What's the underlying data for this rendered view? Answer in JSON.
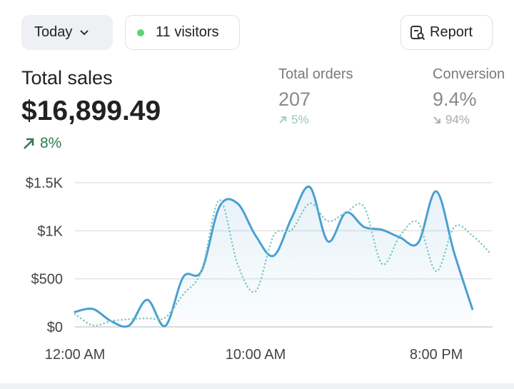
{
  "header": {
    "period": "Today",
    "visitors": "11 visitors",
    "report": "Report"
  },
  "metrics": [
    {
      "label": "Total sales",
      "value": "$16,899.49",
      "change": "8%"
    },
    {
      "label": "Total orders",
      "value": "207",
      "change": "5%"
    },
    {
      "label": "Conversion",
      "value": "9.4%",
      "change": "94%"
    }
  ],
  "chart_data": {
    "type": "line",
    "x": [
      0,
      1,
      2,
      3,
      4,
      5,
      6,
      7,
      8,
      9,
      10,
      11,
      12,
      13,
      14,
      15,
      16,
      17,
      18,
      19,
      20,
      21,
      22,
      23
    ],
    "series": [
      {
        "color": "#4a9fd2",
        "style": "solid",
        "fill": true,
        "values": [
          156,
          186,
          60,
          15,
          282,
          10,
          520,
          580,
          1250,
          1285,
          950,
          740,
          1135,
          1455,
          890,
          1190,
          1040,
          1010,
          930,
          875,
          1410,
          765,
          186,
          null
        ]
      },
      {
        "color": "#7cc7bd",
        "style": "dotted",
        "fill": false,
        "values": [
          134,
          15,
          60,
          80,
          90,
          97,
          340,
          580,
          1320,
          655,
          370,
          950,
          1010,
          1285,
          1100,
          1190,
          1250,
          655,
          950,
          1085,
          580,
          1040,
          950,
          765
        ]
      }
    ],
    "xlim": [
      0,
      23
    ],
    "xticks": [
      {
        "value": 0,
        "label": "12:00 AM"
      },
      {
        "value": 10,
        "label": "10:00 AM"
      },
      {
        "value": 20,
        "label": "8:00 PM"
      }
    ],
    "ylim": [
      0,
      1500
    ],
    "yticks": [
      {
        "value": 0,
        "label": "$0"
      },
      {
        "value": 500,
        "label": "$500"
      },
      {
        "value": 1000,
        "label": "$1K"
      },
      {
        "value": 1500,
        "label": "$1.5K"
      }
    ],
    "grid": true
  }
}
